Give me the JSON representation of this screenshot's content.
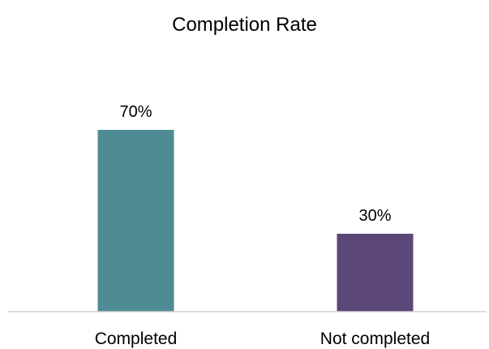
{
  "chart_data": {
    "type": "bar",
    "title": "Completion Rate",
    "categories": [
      "Completed",
      "Not completed"
    ],
    "values": [
      70,
      30
    ],
    "value_labels": [
      "70%",
      "30%"
    ],
    "colors": [
      "#4e8b93",
      "#5b4778"
    ],
    "xlabel": "",
    "ylabel": "",
    "ylim": [
      0,
      80
    ],
    "grid": false,
    "legend": "none"
  }
}
